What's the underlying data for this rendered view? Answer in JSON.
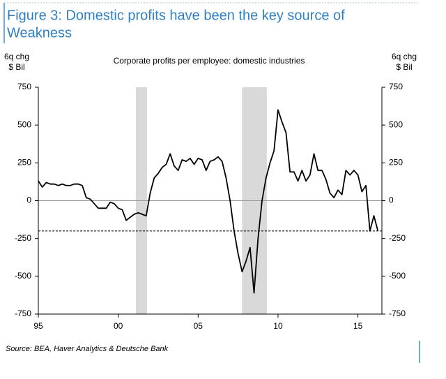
{
  "chart_data": {
    "type": "line",
    "title": [
      "Figure 3: Domestic profits have been the key source of",
      "Weakness"
    ],
    "subtitle": "Corporate profits per employee: domestic industries",
    "ylabel": [
      "6q chg",
      "$ Bil"
    ],
    "y2label": [
      "6q chg",
      "$ Bil"
    ],
    "source": "Source: BEA, Haver Analytics & Deutsche Bank",
    "xlim": [
      1995,
      2016.5
    ],
    "xticks": [
      {
        "value": 1995,
        "label": "95"
      },
      {
        "value": 2000,
        "label": "00"
      },
      {
        "value": 2005,
        "label": "05"
      },
      {
        "value": 2010,
        "label": "10"
      },
      {
        "value": 2015,
        "label": "15"
      }
    ],
    "ylim": [
      -750,
      750
    ],
    "yticks": [
      750,
      500,
      250,
      0,
      -250,
      -500,
      -750
    ],
    "y2lim": [
      -750,
      750
    ],
    "y2ticks": [
      750,
      500,
      250,
      0,
      -250,
      -500,
      -750
    ],
    "reference_line": -200,
    "shaded_regions": [
      [
        2001.1,
        2001.8
      ],
      [
        2007.75,
        2009.3
      ]
    ],
    "shade_color": "#d9d9d9",
    "series": [
      {
        "color": "#000000",
        "x": [
          1995,
          1995.25,
          1995.5,
          1995.75,
          1996,
          1996.25,
          1996.5,
          1996.75,
          1997,
          1997.25,
          1997.5,
          1997.75,
          1998,
          1998.25,
          1998.5,
          1998.75,
          1999,
          1999.25,
          1999.5,
          1999.75,
          2000,
          2000.25,
          2000.5,
          2000.75,
          2001,
          2001.25,
          2001.5,
          2001.75,
          2002,
          2002.25,
          2002.5,
          2002.75,
          2003,
          2003.25,
          2003.5,
          2003.75,
          2004,
          2004.25,
          2004.5,
          2004.75,
          2005,
          2005.25,
          2005.5,
          2005.75,
          2006,
          2006.25,
          2006.5,
          2006.75,
          2007,
          2007.25,
          2007.5,
          2007.75,
          2008,
          2008.25,
          2008.5,
          2008.75,
          2009,
          2009.25,
          2009.5,
          2009.75,
          2010,
          2010.25,
          2010.5,
          2010.75,
          2011,
          2011.25,
          2011.5,
          2011.75,
          2012,
          2012.25,
          2012.5,
          2012.75,
          2013,
          2013.25,
          2013.5,
          2013.75,
          2014,
          2014.25,
          2014.5,
          2014.75,
          2015,
          2015.25,
          2015.5,
          2015.75,
          2016,
          2016.25
        ],
        "values": [
          130,
          90,
          120,
          110,
          110,
          100,
          110,
          100,
          100,
          110,
          110,
          100,
          20,
          10,
          -20,
          -50,
          -50,
          -50,
          -10,
          -20,
          -50,
          -60,
          -130,
          -110,
          -90,
          -80,
          -90,
          -100,
          50,
          150,
          180,
          220,
          240,
          310,
          230,
          200,
          270,
          260,
          280,
          240,
          280,
          270,
          200,
          260,
          270,
          290,
          260,
          150,
          0,
          -200,
          -350,
          -470,
          -400,
          -310,
          -610,
          -250,
          0,
          150,
          250,
          330,
          600,
          520,
          450,
          190,
          190,
          130,
          200,
          130,
          170,
          310,
          200,
          200,
          140,
          50,
          20,
          70,
          40,
          200,
          170,
          200,
          170,
          60,
          100,
          -200,
          -100,
          -200
        ]
      }
    ]
  }
}
